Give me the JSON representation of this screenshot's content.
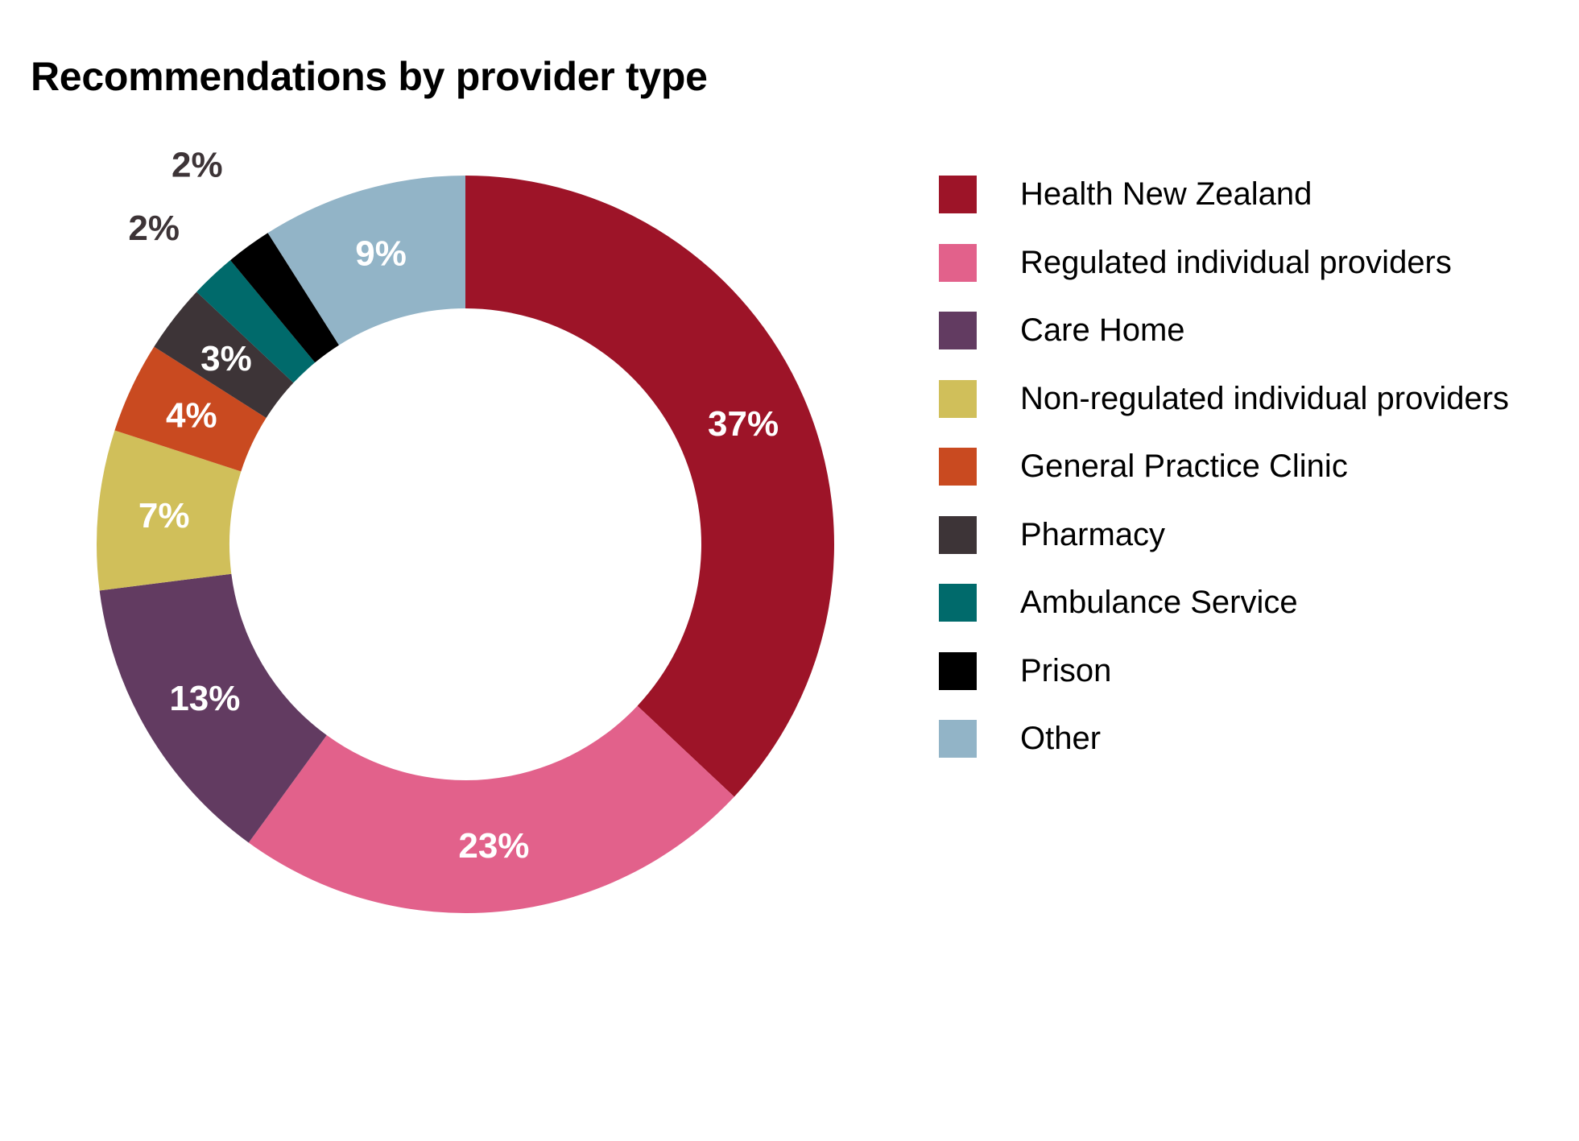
{
  "title": "Recommendations by provider type",
  "chart_data": {
    "type": "pie",
    "subtype": "donut",
    "title": "Recommendations by provider type",
    "start_angle": "12 o'clock",
    "direction": "clockwise",
    "legend_position": "right",
    "unit": "%",
    "slices": [
      {
        "name": "Health New Zealand",
        "value": 37,
        "label": "37%",
        "color": "#9d1428",
        "label_color": "#ffffff"
      },
      {
        "name": "Regulated individual providers",
        "value": 23,
        "label": "23%",
        "color": "#e2618b",
        "label_color": "#ffffff"
      },
      {
        "name": "Care Home",
        "value": 13,
        "label": "13%",
        "color": "#623b61",
        "label_color": "#ffffff"
      },
      {
        "name": "Non-regulated individual providers",
        "value": 7,
        "label": "7%",
        "color": "#d0bf5a",
        "label_color": "#ffffff"
      },
      {
        "name": "General Practice Clinic",
        "value": 4,
        "label": "4%",
        "color": "#c94a20",
        "label_color": "#ffffff"
      },
      {
        "name": "Pharmacy",
        "value": 3,
        "label": "3%",
        "color": "#3d3437",
        "label_color": "#ffffff"
      },
      {
        "name": "Ambulance Service",
        "value": 2,
        "label": "2%",
        "color": "#006a6b",
        "label_color": "#3d3437"
      },
      {
        "name": "Prison",
        "value": 2,
        "label": "2%",
        "color": "#000000",
        "label_color": "#3d3437"
      },
      {
        "name": "Other",
        "value": 9,
        "label": "9%",
        "color": "#92b4c7",
        "label_color": "#ffffff"
      }
    ]
  }
}
